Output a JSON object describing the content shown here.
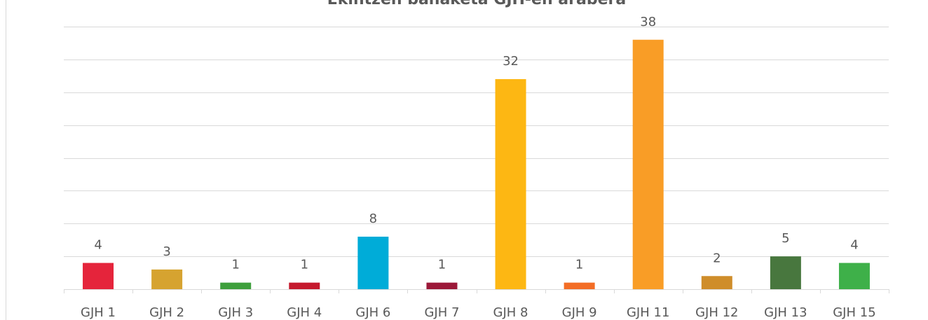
{
  "chart_data": {
    "type": "bar",
    "title": "Ekintzen banaketa GJH-en arabera",
    "categories": [
      "GJH 1",
      "GJH 2",
      "GJH 3",
      "GJH 4",
      "GJH 6",
      "GJH 7",
      "GJH 8",
      "GJH 9",
      "GJH 11",
      "GJH 12",
      "GJH 13",
      "GJH 15"
    ],
    "values": [
      4,
      3,
      1,
      1,
      8,
      1,
      32,
      1,
      38,
      2,
      5,
      4
    ],
    "colors": [
      "#e5243b",
      "#d6a330",
      "#3e9f3c",
      "#c5192d",
      "#00acd8",
      "#9b1838",
      "#fdb713",
      "#f36d25",
      "#f99d26",
      "#cf8d2a",
      "#48773e",
      "#3eb049"
    ],
    "ylim": [
      0,
      40
    ],
    "yticks": [
      0,
      5,
      10,
      15,
      20,
      25,
      30,
      35,
      40
    ],
    "grid": true
  }
}
